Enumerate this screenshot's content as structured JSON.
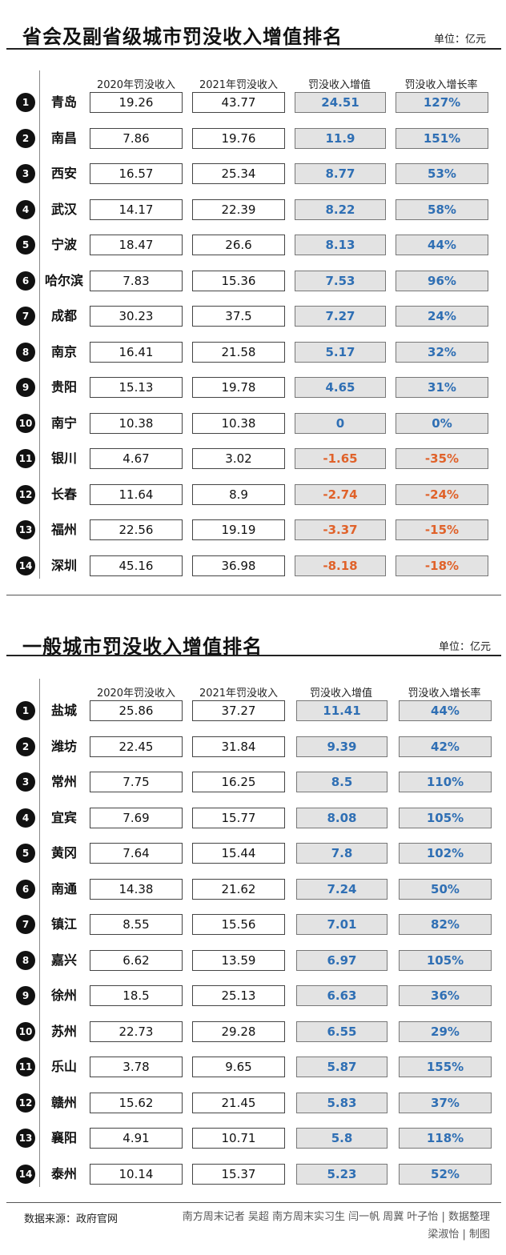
{
  "colors": {
    "positive": "#2f6fb4",
    "negative": "#e0622a",
    "highlight_cell": "#e3e3e3"
  },
  "chart_data": [
    {
      "type": "table",
      "title": "省会及副省级城市罚没收入增值排名",
      "unit": "单位：亿元",
      "columns": [
        "2020年罚没收入",
        "2021年罚没收入",
        "罚没收入增值",
        "罚没收入增长率"
      ],
      "rows": [
        {
          "rank": "1",
          "city": "青岛",
          "v2020": "19.26",
          "v2021": "43.77",
          "increase": "24.51",
          "rate": "127%"
        },
        {
          "rank": "2",
          "city": "南昌",
          "v2020": "7.86",
          "v2021": "19.76",
          "increase": "11.9",
          "rate": "151%"
        },
        {
          "rank": "3",
          "city": "西安",
          "v2020": "16.57",
          "v2021": "25.34",
          "increase": "8.77",
          "rate": "53%"
        },
        {
          "rank": "4",
          "city": "武汉",
          "v2020": "14.17",
          "v2021": "22.39",
          "increase": "8.22",
          "rate": "58%"
        },
        {
          "rank": "5",
          "city": "宁波",
          "v2020": "18.47",
          "v2021": "26.6",
          "increase": "8.13",
          "rate": "44%"
        },
        {
          "rank": "6",
          "city": "哈尔滨",
          "v2020": "7.83",
          "v2021": "15.36",
          "increase": "7.53",
          "rate": "96%"
        },
        {
          "rank": "7",
          "city": "成都",
          "v2020": "30.23",
          "v2021": "37.5",
          "increase": "7.27",
          "rate": "24%"
        },
        {
          "rank": "8",
          "city": "南京",
          "v2020": "16.41",
          "v2021": "21.58",
          "increase": "5.17",
          "rate": "32%"
        },
        {
          "rank": "9",
          "city": "贵阳",
          "v2020": "15.13",
          "v2021": "19.78",
          "increase": "4.65",
          "rate": "31%"
        },
        {
          "rank": "10",
          "city": "南宁",
          "v2020": "10.38",
          "v2021": "10.38",
          "increase": "0",
          "rate": "0%"
        },
        {
          "rank": "11",
          "city": "银川",
          "v2020": "4.67",
          "v2021": "3.02",
          "increase": "-1.65",
          "rate": "-35%"
        },
        {
          "rank": "12",
          "city": "长春",
          "v2020": "11.64",
          "v2021": "8.9",
          "increase": "-2.74",
          "rate": "-24%"
        },
        {
          "rank": "13",
          "city": "福州",
          "v2020": "22.56",
          "v2021": "19.19",
          "increase": "-3.37",
          "rate": "-15%"
        },
        {
          "rank": "14",
          "city": "深圳",
          "v2020": "45.16",
          "v2021": "36.98",
          "increase": "-8.18",
          "rate": "-18%"
        }
      ]
    },
    {
      "type": "table",
      "title": "一般城市罚没收入增值排名",
      "unit": "单位：亿元",
      "columns": [
        "2020年罚没收入",
        "2021年罚没收入",
        "罚没收入增值",
        "罚没收入增长率"
      ],
      "rows": [
        {
          "rank": "1",
          "city": "盐城",
          "v2020": "25.86",
          "v2021": "37.27",
          "increase": "11.41",
          "rate": "44%"
        },
        {
          "rank": "2",
          "city": "潍坊",
          "v2020": "22.45",
          "v2021": "31.84",
          "increase": "9.39",
          "rate": "42%"
        },
        {
          "rank": "3",
          "city": "常州",
          "v2020": "7.75",
          "v2021": "16.25",
          "increase": "8.5",
          "rate": "110%"
        },
        {
          "rank": "4",
          "city": "宜宾",
          "v2020": "7.69",
          "v2021": "15.77",
          "increase": "8.08",
          "rate": "105%"
        },
        {
          "rank": "5",
          "city": "黄冈",
          "v2020": "7.64",
          "v2021": "15.44",
          "increase": "7.8",
          "rate": "102%"
        },
        {
          "rank": "6",
          "city": "南通",
          "v2020": "14.38",
          "v2021": "21.62",
          "increase": "7.24",
          "rate": "50%"
        },
        {
          "rank": "7",
          "city": "镇江",
          "v2020": "8.55",
          "v2021": "15.56",
          "increase": "7.01",
          "rate": "82%"
        },
        {
          "rank": "8",
          "city": "嘉兴",
          "v2020": "6.62",
          "v2021": "13.59",
          "increase": "6.97",
          "rate": "105%"
        },
        {
          "rank": "9",
          "city": "徐州",
          "v2020": "18.5",
          "v2021": "25.13",
          "increase": "6.63",
          "rate": "36%"
        },
        {
          "rank": "10",
          "city": "苏州",
          "v2020": "22.73",
          "v2021": "29.28",
          "increase": "6.55",
          "rate": "29%"
        },
        {
          "rank": "11",
          "city": "乐山",
          "v2020": "3.78",
          "v2021": "9.65",
          "increase": "5.87",
          "rate": "155%"
        },
        {
          "rank": "12",
          "city": "赣州",
          "v2020": "15.62",
          "v2021": "21.45",
          "increase": "5.83",
          "rate": "37%"
        },
        {
          "rank": "13",
          "city": "襄阳",
          "v2020": "4.91",
          "v2021": "10.71",
          "increase": "5.8",
          "rate": "118%"
        },
        {
          "rank": "14",
          "city": "泰州",
          "v2020": "10.14",
          "v2021": "15.37",
          "increase": "5.23",
          "rate": "52%"
        }
      ]
    }
  ],
  "footer": {
    "source": "数据来源：政府官网",
    "credits_line1": "南方周末记者 吴超 南方周末实习生 闫一帆 周冀 叶子怡 | 数据整理",
    "credits_line2": "梁淑怡 | 制图"
  }
}
